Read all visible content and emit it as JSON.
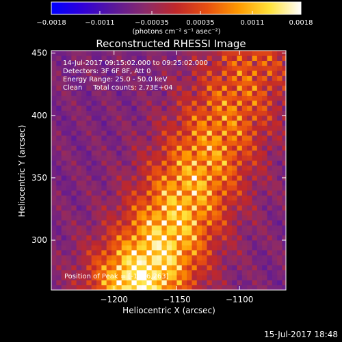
{
  "chart_data": {
    "type": "heatmap",
    "title": "Reconstructed RHESSI Image",
    "xlabel": "Heliocentric X (arcsec)",
    "ylabel": "Heliocentric Y (arcsec)",
    "xlim": [
      -1250,
      -1063
    ],
    "ylim": [
      260,
      452
    ],
    "x_ticks": [
      -1200,
      -1150,
      -1100
    ],
    "y_ticks": [
      300,
      350,
      400,
      450
    ],
    "x_tick_labels": [
      "−1200",
      "−1150",
      "−1100"
    ],
    "y_tick_labels": [
      "300",
      "350",
      "400",
      "450"
    ],
    "colorbar": {
      "range": [
        -0.0018,
        0.0018
      ],
      "ticks": [
        -0.0018,
        -0.0011,
        -0.00035,
        0.00035,
        0.0011,
        0.0018
      ],
      "tick_labels": [
        "−0.0018",
        "−0.0011",
        "−0.00035",
        "0.00035",
        "0.0011",
        "0.0018"
      ],
      "units_label": "(photons cm⁻² s⁻¹ asec⁻²)",
      "colors": [
        "#0000ff",
        "#3000d8",
        "#5a189a",
        "#8a2a6a",
        "#c0282a",
        "#e85010",
        "#ff9a00",
        "#ffe23a",
        "#ffffff"
      ]
    },
    "annotations": [
      "14-Jul-2017 09:15:02.000 to 09:25:02.000",
      "Detectors: 3F 6F 8F, Att 0",
      "Energy Range: 25.0 - 50.0 keV",
      "Clean     Total counts: 2.73E+04"
    ],
    "peak_label": "Position of Peak = [-1166,263]",
    "emission_ridge": [
      {
        "x": -1180,
        "y": 268,
        "level": 1.0
      },
      {
        "x": -1165,
        "y": 290,
        "level": 0.9
      },
      {
        "x": -1150,
        "y": 320,
        "level": 0.78
      },
      {
        "x": -1135,
        "y": 350,
        "level": 0.7
      },
      {
        "x": -1120,
        "y": 380,
        "level": 0.6
      },
      {
        "x": -1105,
        "y": 410,
        "level": 0.5
      },
      {
        "x": -1090,
        "y": 440,
        "level": 0.42
      }
    ]
  },
  "footer": {
    "timestamp": "15-Jul-2017 18:48"
  }
}
